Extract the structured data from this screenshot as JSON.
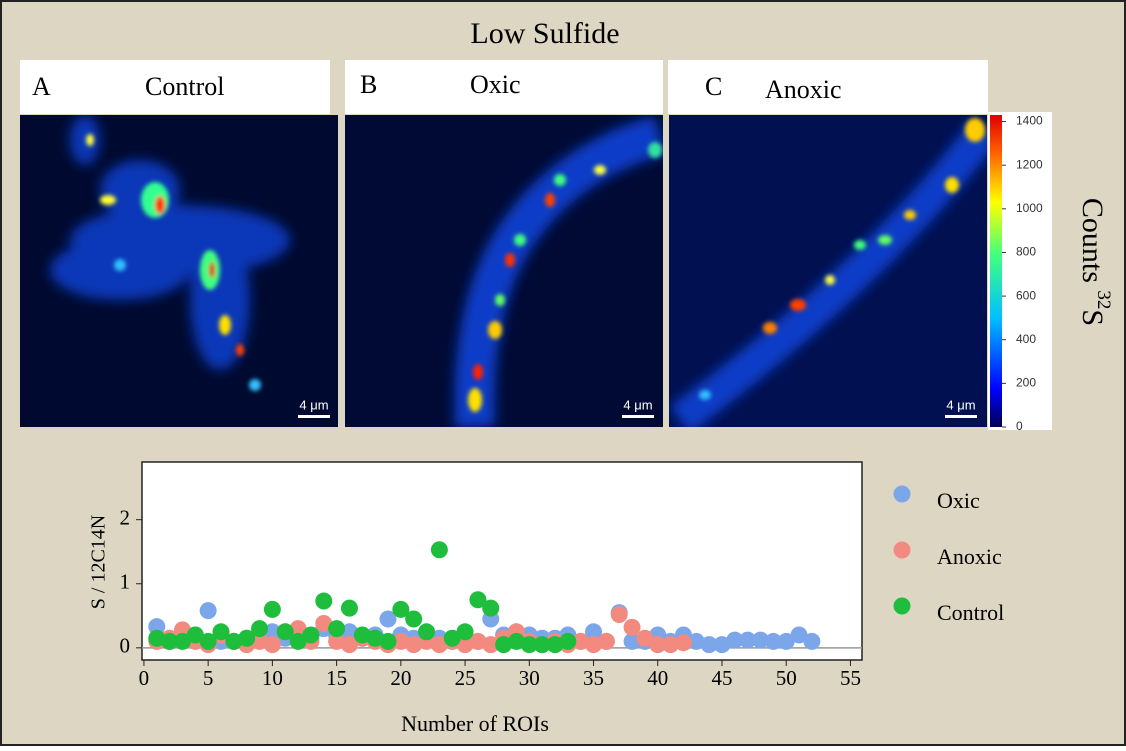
{
  "title": "Low Sulfide",
  "panels": [
    {
      "letter": "A",
      "label": "Control",
      "scale_bar": "4 μm"
    },
    {
      "letter": "B",
      "label": "Oxic",
      "scale_bar": "4 μm"
    },
    {
      "letter": "C",
      "label": "Anoxic",
      "scale_bar": "4 μm"
    }
  ],
  "colorbar": {
    "label": "Counts",
    "label_superscript": "32",
    "label_element": "S",
    "lim": [
      0,
      1430
    ],
    "ticks": [
      0,
      200,
      400,
      600,
      800,
      1000,
      1200,
      1400
    ]
  },
  "chart_data": {
    "type": "scatter",
    "xlabel": "Number of ROIs",
    "ylabel": "S / 12C14N",
    "xlim": [
      -0.15,
      55.9
    ],
    "xticks": [
      0,
      5,
      10,
      15,
      20,
      25,
      30,
      35,
      40,
      45,
      50,
      55
    ],
    "ylim": [
      -0.19,
      2.9
    ],
    "yticks": [
      0,
      1,
      2
    ],
    "series": [
      {
        "name": "Oxic",
        "color": "#7ba7ea",
        "x": [
          1,
          2,
          3,
          4,
          5,
          6,
          7,
          8,
          9,
          10,
          11,
          12,
          13,
          14,
          15,
          16,
          17,
          18,
          19,
          20,
          21,
          22,
          23,
          24,
          25,
          26,
          27,
          28,
          29,
          30,
          31,
          32,
          33,
          34,
          35,
          36,
          37,
          38,
          39,
          40,
          41,
          42,
          43,
          44,
          45,
          46,
          47,
          48,
          49,
          50,
          51,
          52
        ],
        "values": [
          0.33,
          0.1,
          0.15,
          0.2,
          0.58,
          0.1,
          0.1,
          0.15,
          0.2,
          0.25,
          0.15,
          0.2,
          0.15,
          0.3,
          0.2,
          0.25,
          0.15,
          0.2,
          0.45,
          0.2,
          0.15,
          0.2,
          0.15,
          0.1,
          0.15,
          0.1,
          0.45,
          0.2,
          0.25,
          0.2,
          0.15,
          0.15,
          0.2,
          0.1,
          0.25,
          0.1,
          0.55,
          0.1,
          0.1,
          0.2,
          0.1,
          0.2,
          0.1,
          0.05,
          0.05,
          0.12,
          0.12,
          0.12,
          0.1,
          0.1,
          0.2,
          0.1
        ]
      },
      {
        "name": "Anoxic",
        "color": "#f28a80",
        "x": [
          1,
          2,
          3,
          4,
          5,
          6,
          7,
          8,
          9,
          10,
          11,
          12,
          13,
          14,
          15,
          16,
          17,
          18,
          19,
          20,
          21,
          22,
          23,
          24,
          25,
          26,
          27,
          28,
          29,
          30,
          31,
          32,
          33,
          34,
          35,
          36,
          37,
          38,
          39,
          40,
          41,
          42
        ],
        "values": [
          0.1,
          0.15,
          0.28,
          0.1,
          0.05,
          0.2,
          0.1,
          0.05,
          0.1,
          0.05,
          0.25,
          0.3,
          0.1,
          0.38,
          0.1,
          0.05,
          0.15,
          0.1,
          0.05,
          0.1,
          0.05,
          0.1,
          0.05,
          0.1,
          0.05,
          0.1,
          0.05,
          0.15,
          0.25,
          0.1,
          0.05,
          0.1,
          0.05,
          0.1,
          0.05,
          0.1,
          0.52,
          0.32,
          0.15,
          0.05,
          0.05,
          0.08
        ]
      },
      {
        "name": "Control",
        "color": "#1fbd3c",
        "x": [
          1,
          2,
          3,
          4,
          5,
          6,
          7,
          8,
          9,
          10,
          11,
          12,
          13,
          14,
          15,
          16,
          17,
          18,
          19,
          20,
          21,
          22,
          23,
          24,
          25,
          26,
          27,
          28,
          29,
          30,
          31,
          32,
          33
        ],
        "values": [
          0.15,
          0.1,
          0.1,
          0.2,
          0.1,
          0.25,
          0.1,
          0.15,
          0.3,
          0.6,
          0.25,
          0.1,
          0.2,
          0.73,
          0.3,
          0.62,
          0.2,
          0.15,
          0.1,
          0.6,
          0.45,
          0.25,
          1.53,
          0.15,
          0.25,
          0.75,
          0.62,
          0.05,
          0.1,
          0.05,
          0.05,
          0.05,
          0.1
        ]
      }
    ]
  }
}
